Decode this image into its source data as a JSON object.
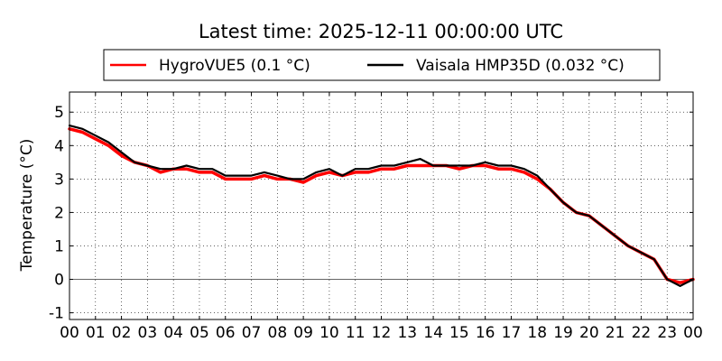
{
  "chart_data": {
    "type": "line",
    "title": "Latest time: 2025-12-11 00:00:00 UTC",
    "xlabel": "",
    "ylabel": "Temperature (°C)",
    "x_tick_labels": [
      "00",
      "01",
      "02",
      "03",
      "04",
      "05",
      "06",
      "07",
      "08",
      "09",
      "10",
      "11",
      "12",
      "13",
      "14",
      "15",
      "16",
      "17",
      "18",
      "19",
      "20",
      "21",
      "22",
      "23",
      "00"
    ],
    "y_ticks": [
      -1,
      0,
      1,
      2,
      3,
      4,
      5
    ],
    "xlim": [
      0,
      24
    ],
    "ylim": [
      -1.2,
      5.6
    ],
    "grid": true,
    "zero_line": true,
    "legend_position": "top-center",
    "series": [
      {
        "name": "HygroVUE5 (0.1 °C)",
        "color": "#ff0000",
        "x": [
          0,
          0.5,
          1,
          1.5,
          2,
          2.5,
          3,
          3.5,
          4,
          4.5,
          5,
          5.5,
          6,
          6.5,
          7,
          7.5,
          8,
          8.5,
          9,
          9.5,
          10,
          10.5,
          11,
          11.5,
          12,
          12.5,
          13,
          13.5,
          14,
          14.5,
          15,
          15.5,
          16,
          16.5,
          17,
          17.5,
          18,
          18.5,
          19,
          19.5,
          20,
          20.5,
          21,
          21.5,
          22,
          22.5,
          23,
          23.5,
          24
        ],
        "values": [
          4.5,
          4.4,
          4.2,
          4.0,
          3.7,
          3.5,
          3.4,
          3.2,
          3.3,
          3.3,
          3.2,
          3.2,
          3.0,
          3.0,
          3.0,
          3.1,
          3.0,
          3.0,
          2.9,
          3.1,
          3.2,
          3.1,
          3.2,
          3.2,
          3.3,
          3.3,
          3.4,
          3.4,
          3.4,
          3.4,
          3.3,
          3.4,
          3.4,
          3.3,
          3.3,
          3.2,
          3.0,
          2.7,
          2.3,
          2.0,
          1.9,
          1.6,
          1.3,
          1.0,
          0.8,
          0.6,
          0.0,
          -0.1,
          0.0
        ]
      },
      {
        "name": "Vaisala HMP35D (0.032 °C)",
        "color": "#000000",
        "x": [
          0,
          0.5,
          1,
          1.5,
          2,
          2.5,
          3,
          3.5,
          4,
          4.5,
          5,
          5.5,
          6,
          6.5,
          7,
          7.5,
          8,
          8.5,
          9,
          9.5,
          10,
          10.5,
          11,
          11.5,
          12,
          12.5,
          13,
          13.5,
          14,
          14.5,
          15,
          15.5,
          16,
          16.5,
          17,
          17.5,
          18,
          18.5,
          19,
          19.5,
          20,
          20.5,
          21,
          21.5,
          22,
          22.5,
          23,
          23.5,
          24
        ],
        "values": [
          4.6,
          4.5,
          4.3,
          4.1,
          3.8,
          3.5,
          3.4,
          3.3,
          3.3,
          3.4,
          3.3,
          3.3,
          3.1,
          3.1,
          3.1,
          3.2,
          3.1,
          3.0,
          3.0,
          3.2,
          3.3,
          3.1,
          3.3,
          3.3,
          3.4,
          3.4,
          3.5,
          3.6,
          3.4,
          3.4,
          3.4,
          3.4,
          3.5,
          3.4,
          3.4,
          3.3,
          3.1,
          2.7,
          2.3,
          2.0,
          1.9,
          1.6,
          1.3,
          1.0,
          0.8,
          0.6,
          0.0,
          -0.2,
          0.0
        ]
      }
    ]
  }
}
